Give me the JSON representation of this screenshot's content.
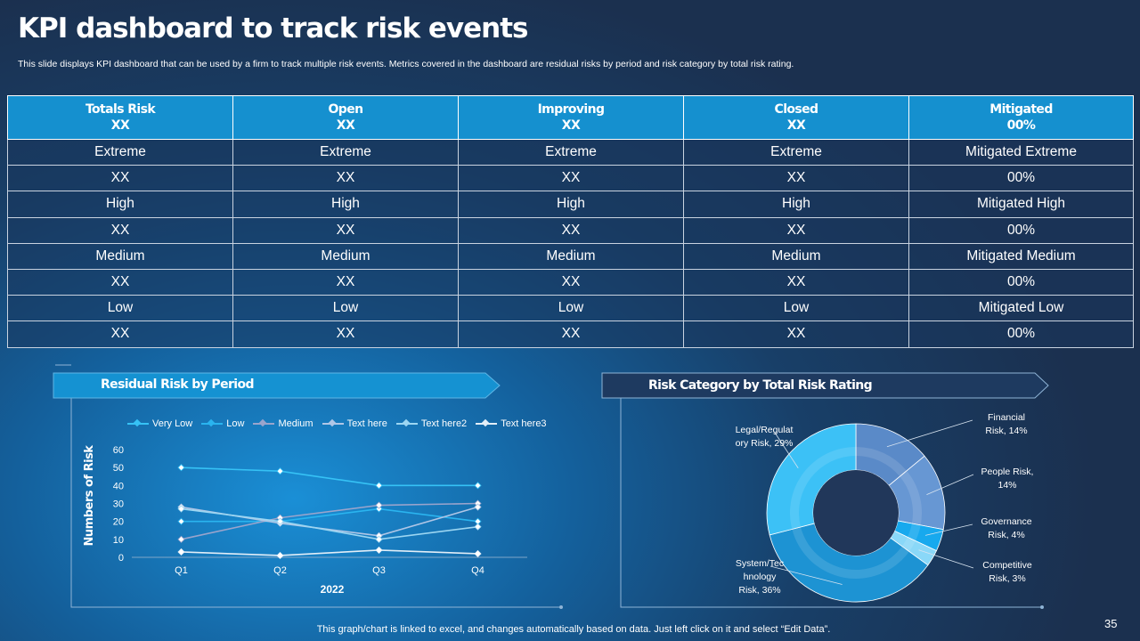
{
  "slide": {
    "title": "KPI dashboard to track risk events",
    "subtitle": "This slide displays KPI dashboard that can be used by a firm to track multiple risk events. Metrics covered in the dashboard are residual risks by period and risk category by total risk rating.",
    "footer_note": "This graph/chart is linked to excel,  and changes automatically based on data. Just left click on it and select “Edit Data”.",
    "page_number": "35"
  },
  "table": {
    "headers": [
      {
        "label": "Totals Risk",
        "value": "XX"
      },
      {
        "label": "Open",
        "value": "XX"
      },
      {
        "label": "Improving",
        "value": "XX"
      },
      {
        "label": "Closed",
        "value": "XX"
      },
      {
        "label": "Mitigated",
        "value": "00%"
      }
    ],
    "rows": [
      [
        "Extreme",
        "Extreme",
        "Extreme",
        "Extreme",
        "Mitigated Extreme"
      ],
      [
        "XX",
        "XX",
        "XX",
        "XX",
        "00%"
      ],
      [
        "High",
        "High",
        "High",
        "High",
        "Mitigated High"
      ],
      [
        "XX",
        "XX",
        "XX",
        "XX",
        "00%"
      ],
      [
        "Medium",
        "Medium",
        "Medium",
        "Medium",
        "Mitigated Medium"
      ],
      [
        "XX",
        "XX",
        "XX",
        "XX",
        "00%"
      ],
      [
        "Low",
        "Low",
        "Low",
        "Low",
        "Mitigated Low"
      ],
      [
        "XX",
        "XX",
        "XX",
        "XX",
        "00%"
      ]
    ]
  },
  "line_panel": {
    "heading": "Residual Risk by Period"
  },
  "pie_panel": {
    "heading": "Risk Category by Total Risk Rating"
  },
  "chart_data": [
    {
      "type": "line",
      "title": "Residual Risk by Period",
      "categories": [
        "Q1",
        "Q2",
        "Q3",
        "Q4"
      ],
      "xlabel": "2022",
      "ylabel": "Numbers of Risk",
      "ylim": [
        0,
        60
      ],
      "yticks": [
        "0",
        "10",
        "20",
        "30",
        "40",
        "50",
        "60"
      ],
      "legend_position": "top",
      "series": [
        {
          "name": "Very Low",
          "values": [
            50,
            48,
            40,
            40
          ],
          "color": "#36c2f5"
        },
        {
          "name": "Low",
          "values": [
            20,
            20,
            27,
            20
          ],
          "color": "#2ab4ef"
        },
        {
          "name": "Medium",
          "values": [
            10,
            22,
            29,
            30
          ],
          "color": "#9aa4cc"
        },
        {
          "name": "Text here",
          "values": [
            28,
            19,
            12,
            28
          ],
          "color": "#b0c6e6"
        },
        {
          "name": "Text here2",
          "values": [
            27,
            20,
            10,
            17
          ],
          "color": "#9cd6f2"
        },
        {
          "name": "Text here3",
          "values": [
            3,
            1,
            4,
            2
          ],
          "color": "#e2eef8"
        }
      ]
    },
    {
      "type": "pie",
      "title": "Risk Category by Total Risk Rating",
      "donut": true,
      "slices": [
        {
          "label": "Financial Risk, 14%",
          "name": "Financial Risk",
          "value": 14,
          "color": "#5a8ac8"
        },
        {
          "label": "People Risk, 14%",
          "name": "People Risk",
          "value": 14,
          "color": "#6797d3"
        },
        {
          "label": "Governance Risk, 4%",
          "name": "Governance Risk",
          "value": 4,
          "color": "#17a9ee"
        },
        {
          "label": "Competitive Risk, 3%",
          "name": "Competitive Risk",
          "value": 3,
          "color": "#8ad8f8"
        },
        {
          "label": "System/Technology Risk, 36%",
          "name": "System/Technology Risk",
          "value": 36,
          "color": "#1d93d3"
        },
        {
          "label": "Legal/Regulatory Risk, 29%",
          "name": "Legal/Regulatory Risk",
          "value": 29,
          "color": "#3cc1f6"
        }
      ]
    }
  ]
}
